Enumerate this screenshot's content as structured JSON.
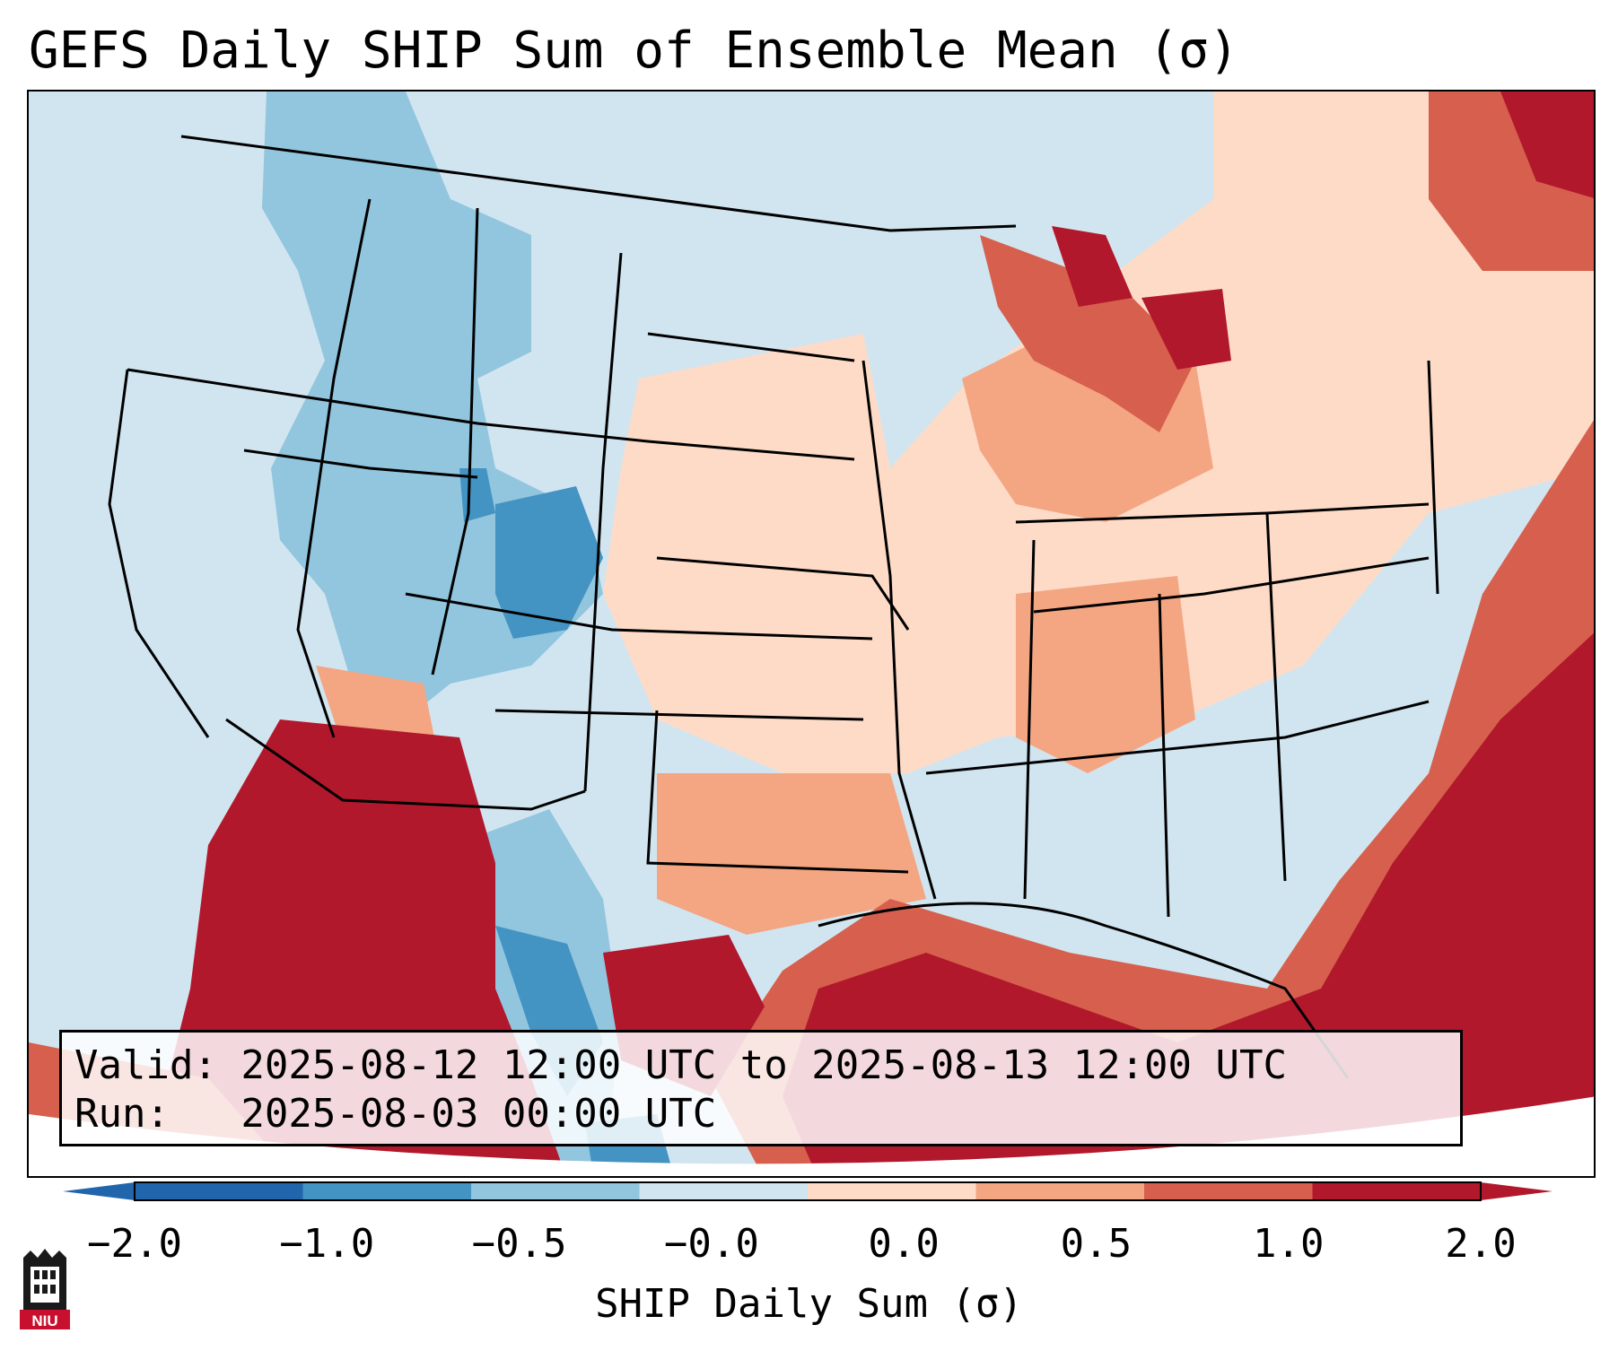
{
  "title": "GEFS Daily SHIP Sum of Ensemble Mean (σ)",
  "info": {
    "valid_line": "Valid: 2025-08-12 12:00 UTC to 2025-08-13 12:00 UTC",
    "run_line": "Run:   2025-08-03 00:00 UTC"
  },
  "colorbar": {
    "label": "SHIP Daily Sum (σ)",
    "ticks": [
      "−2.0",
      "−1.0",
      "−0.5",
      "−0.0",
      "0.0",
      "0.5",
      "1.0",
      "2.0"
    ],
    "colors": [
      "#2166ac",
      "#4393c3",
      "#92c5de",
      "#d1e5f0",
      "#fddbc7",
      "#f4a582",
      "#d6604d",
      "#b2182b"
    ],
    "under_color": "#2166ac",
    "over_color": "#b2182b"
  },
  "logo": {
    "name": "niu-logo",
    "text": "NIU"
  }
}
